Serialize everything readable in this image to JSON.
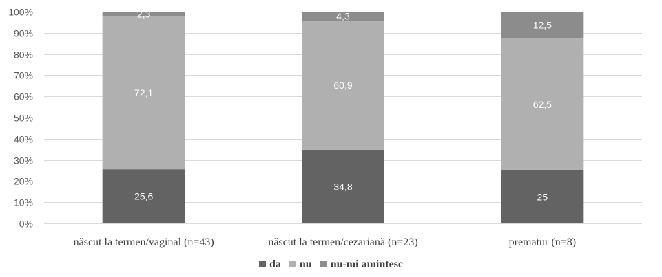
{
  "chart_data": {
    "type": "bar",
    "stacked": true,
    "percent_axis": true,
    "categories": [
      "născut la termen/vaginal (n=43)",
      "născut la termen/cezariană (n=23)",
      "prematur (n=8)"
    ],
    "series": [
      {
        "name": "da",
        "values": [
          25.6,
          34.8,
          25
        ],
        "labels": [
          "25,6",
          "34,8",
          "25"
        ],
        "color": "#636363"
      },
      {
        "name": "nu",
        "values": [
          72.1,
          60.9,
          62.5
        ],
        "labels": [
          "72,1",
          "60,9",
          "62,5"
        ],
        "color": "#b0b0b0"
      },
      {
        "name": "nu-mi amintesc",
        "values": [
          2.3,
          4.3,
          12.5
        ],
        "labels": [
          "2,3",
          "4,3",
          "12,5"
        ],
        "color": "#8c8c8c"
      }
    ],
    "ylim": [
      0,
      100
    ],
    "yticks": [
      0,
      10,
      20,
      30,
      40,
      50,
      60,
      70,
      80,
      90,
      100
    ],
    "ytick_labels": [
      "0%",
      "10%",
      "20%",
      "30%",
      "40%",
      "50%",
      "60%",
      "70%",
      "80%",
      "90%",
      "100%"
    ],
    "grid": true,
    "legend_position": "bottom"
  }
}
